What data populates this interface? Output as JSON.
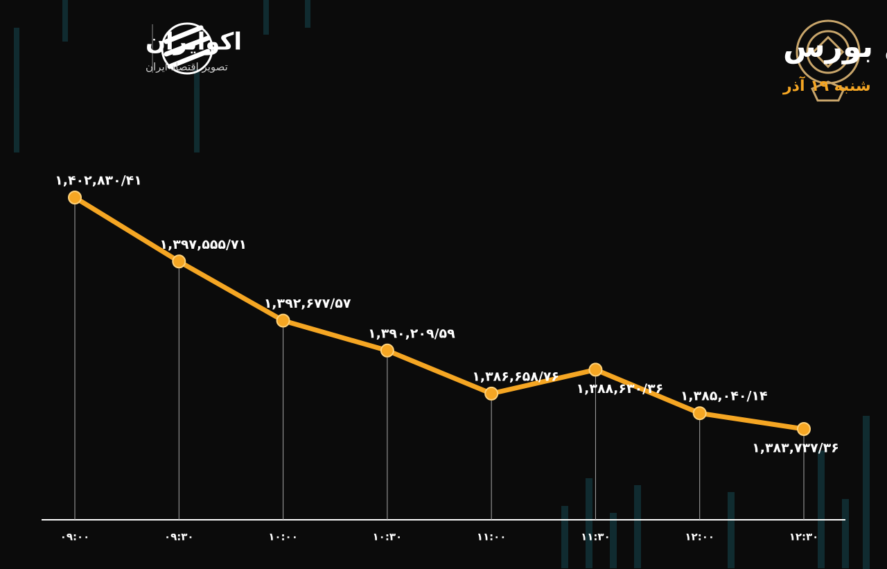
{
  "brand": {
    "name": "اکوایران",
    "tagline": "تصویر اقتصاد ایران"
  },
  "chart_data": {
    "type": "line",
    "title": "روند شاخص کل بورس",
    "subtitle": "شنبه ۱۹ آذر",
    "categories": [
      "۰۹:۰۰",
      "۰۹:۳۰",
      "۱۰:۰۰",
      "۱۰:۳۰",
      "۱۱:۰۰",
      "۱۱:۳۰",
      "۱۲:۰۰",
      "۱۲:۳۰"
    ],
    "values": [
      1402830.41,
      1397555.71,
      1392677.57,
      1390209.59,
      1386658.76,
      1388630.36,
      1385040.14,
      1383737.36
    ],
    "value_labels": [
      "۱,۴۰۲,۸۳۰/۴۱",
      "۱,۳۹۷,۵۵۵/۷۱",
      "۱,۳۹۲,۶۷۷/۵۷",
      "۱,۳۹۰,۲۰۹/۵۹",
      "۱,۳۸۶,۶۵۸/۷۶",
      "۱,۳۸۸,۶۳۰/۳۶",
      "۱,۳۸۵,۰۴۰/۱۴",
      "۱,۳۸۳,۷۳۷/۳۶"
    ],
    "color": "#f5a623"
  }
}
